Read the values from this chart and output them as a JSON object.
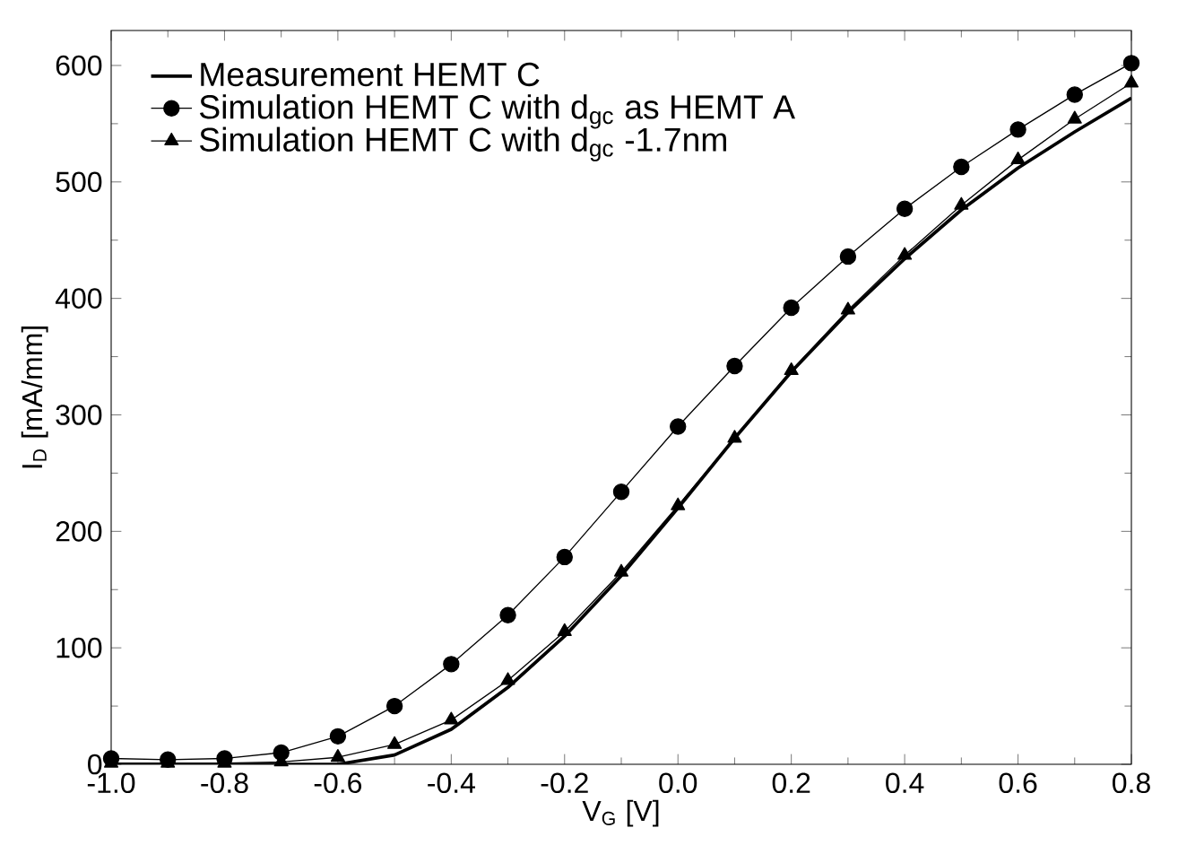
{
  "chart_data": {
    "type": "line",
    "xlabel": "V$_{G}$ [V]",
    "ylabel": "I$_{D}$ [mA/mm]",
    "x": [
      -1.0,
      -0.9,
      -0.8,
      -0.7,
      -0.6,
      -0.5,
      -0.4,
      -0.3,
      -0.2,
      -0.1,
      0.0,
      0.1,
      0.2,
      0.3,
      0.4,
      0.5,
      0.6,
      0.7,
      0.8
    ],
    "series": [
      {
        "name": "Measurement HEMT C",
        "color": "#000000",
        "marker": "none",
        "values": [
          0,
          0,
          0,
          0,
          0,
          8,
          30,
          66,
          110,
          162,
          220,
          280,
          337,
          388,
          434,
          476,
          512,
          543,
          572
        ]
      },
      {
        "name": "Simulation HEMT C with d$_{gc}$ as HEMT A",
        "color": "#000000",
        "marker": "circle",
        "values": [
          5,
          4,
          5,
          10,
          24,
          50,
          86,
          128,
          178,
          234,
          290,
          342,
          392,
          436,
          477,
          513,
          545,
          575,
          602
        ]
      },
      {
        "name": "Simulation HEMT C with d$_{gc}$ -1.7nm",
        "color": "#000000",
        "marker": "triangle",
        "values": [
          1,
          1,
          1,
          2,
          6,
          17,
          38,
          72,
          114,
          165,
          222,
          280,
          338,
          390,
          437,
          480,
          519,
          554,
          585
        ]
      }
    ],
    "xlim": [
      -1.0,
      0.8
    ],
    "ylim": [
      0,
      630
    ],
    "xticks": [
      {
        "value": -1.0,
        "label": "-1.0"
      },
      {
        "value": -0.8,
        "label": "-0.8"
      },
      {
        "value": -0.6,
        "label": "-0.6"
      },
      {
        "value": -0.4,
        "label": "-0.4"
      },
      {
        "value": -0.2,
        "label": "-0.2"
      },
      {
        "value": 0.0,
        "label": "0.0"
      },
      {
        "value": 0.2,
        "label": "0.2"
      },
      {
        "value": 0.4,
        "label": "0.4"
      },
      {
        "value": 0.6,
        "label": "0.6"
      },
      {
        "value": 0.8,
        "label": "0.8"
      }
    ],
    "yticks": [
      0,
      100,
      200,
      300,
      400,
      500,
      600
    ],
    "legend": "top left",
    "grid": false,
    "line_style": "solid"
  }
}
